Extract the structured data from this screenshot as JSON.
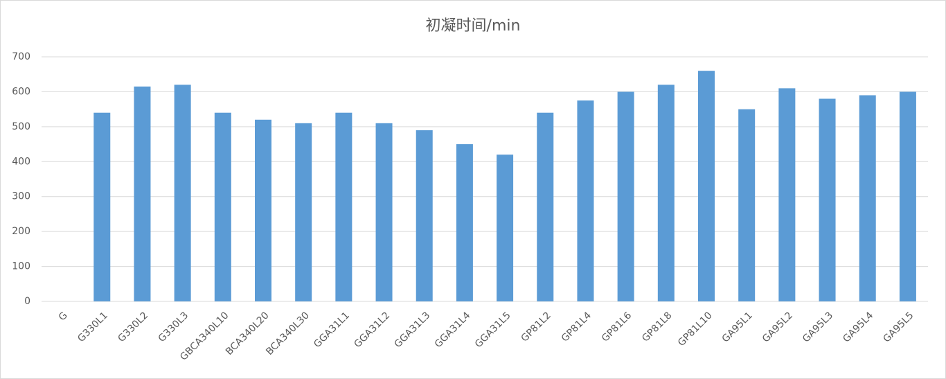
{
  "chart_data": {
    "type": "bar",
    "title": "初凝时间/min",
    "categories": [
      "G",
      "G330L1",
      "G330L2",
      "G330L3",
      "GBCA340L10",
      "BCA340L20",
      "BCA340L30",
      "GGA31L1",
      "GGA31L2",
      "GGA31L3",
      "GGA31L4",
      "GGA31L5",
      "GP81L2",
      "GP81L4",
      "GP81L6",
      "GP81L8",
      "GP81L10",
      "GA95L1",
      "GA95L2",
      "GA95L3",
      "GA95L4",
      "GA95L5"
    ],
    "values": [
      null,
      540,
      615,
      620,
      540,
      520,
      510,
      540,
      510,
      490,
      450,
      420,
      540,
      575,
      600,
      620,
      660,
      550,
      610,
      580,
      590,
      600
    ],
    "color": "#5b9bd5",
    "ylim": [
      0,
      700
    ],
    "yticks": [
      0,
      100,
      200,
      300,
      400,
      500,
      600,
      700
    ],
    "grid": true
  }
}
